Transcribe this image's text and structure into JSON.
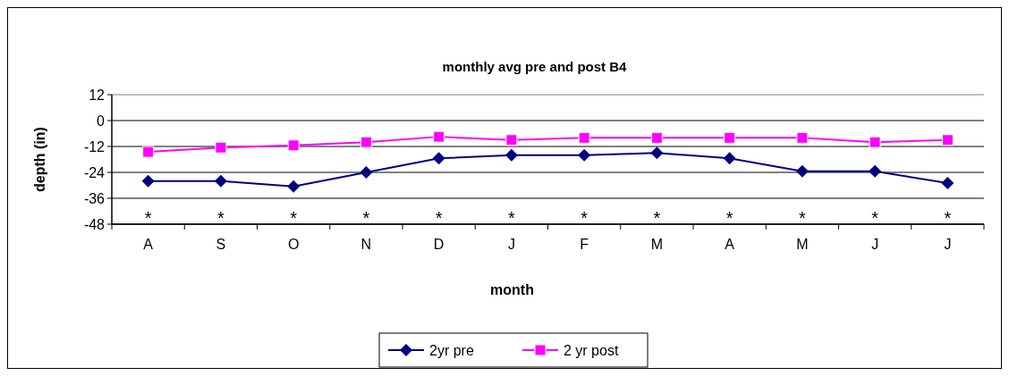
{
  "chart_data": {
    "type": "line",
    "title": "monthly avg pre and post B4",
    "xlabel": "month",
    "ylabel": "depth (in)",
    "categories": [
      "A",
      "S",
      "O",
      "N",
      "D",
      "J",
      "F",
      "M",
      "A",
      "M",
      "J",
      "J"
    ],
    "series": [
      {
        "name": "2yr pre",
        "color": "#000080",
        "marker": "diamond",
        "values": [
          -28,
          -28,
          -30.5,
          -24,
          -17.5,
          -16,
          -16,
          -15,
          -17.5,
          -23.5,
          -23.5,
          -29
        ]
      },
      {
        "name": "2 yr post",
        "color": "#ff00ff",
        "marker": "square",
        "values": [
          -14.5,
          -12.5,
          -11.5,
          -10,
          -7.5,
          -9,
          -8,
          -8,
          -8,
          -8,
          -10,
          -9
        ]
      }
    ],
    "ylim": [
      -48,
      12
    ],
    "yticks": [
      -48,
      -36,
      -24,
      -12,
      0,
      12
    ],
    "grid": "y",
    "legend": "bottom",
    "annotations": [
      "*",
      "*",
      "*",
      "*",
      "*",
      "*",
      "*",
      "*",
      "*",
      "*",
      "*",
      "*"
    ]
  }
}
